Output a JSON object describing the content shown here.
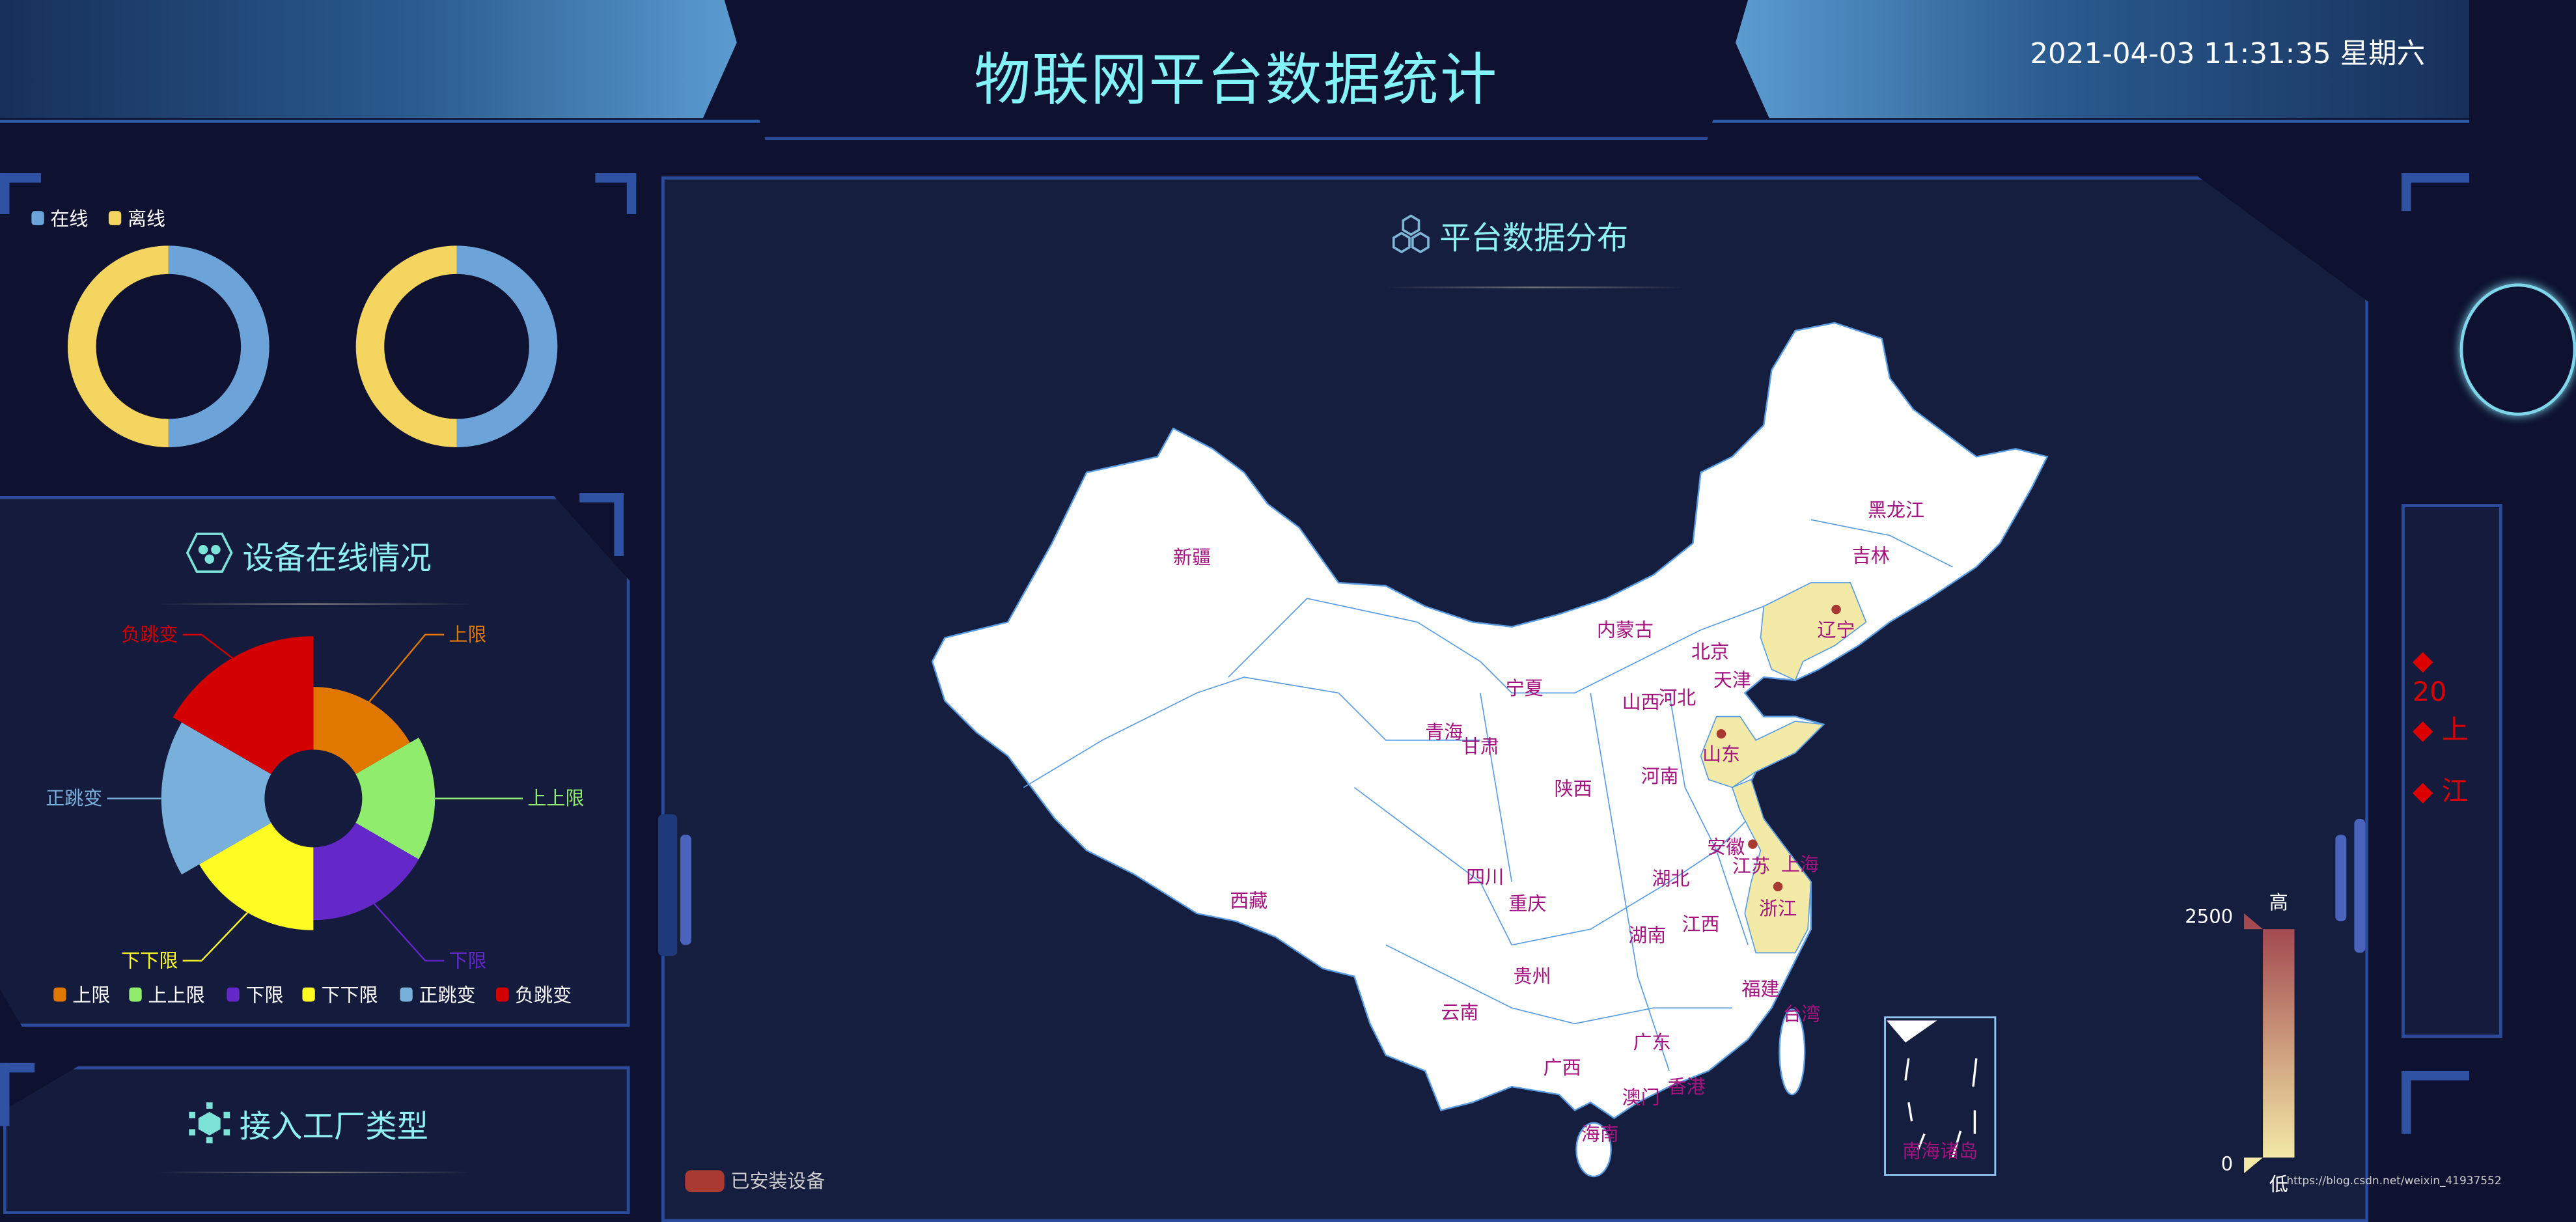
{
  "header": {
    "title": "物联网平台数据统计",
    "datetime": "2021-04-03 11:31:35 星期六"
  },
  "online_panel": {
    "legend": [
      {
        "label": "在线",
        "color": "#6ca3d9"
      },
      {
        "label": "离线",
        "color": "#f3d55f"
      }
    ],
    "donuts": [
      {
        "online": 50,
        "offline": 50
      },
      {
        "online": 50,
        "offline": 50
      }
    ]
  },
  "device_panel": {
    "title": "设备在线情况",
    "icon": "hexagon-cluster-icon",
    "chart_data": {
      "type": "pie",
      "rose": true,
      "categories": [
        "上限",
        "上上限",
        "下限",
        "下下限",
        "正跳变",
        "负跳变"
      ],
      "values": [
        11,
        12,
        12,
        13,
        15,
        16
      ],
      "colors": [
        "#e07800",
        "#8fec6c",
        "#6428c8",
        "#fefc22",
        "#78afdb",
        "#d20000"
      ],
      "legend_placement": "bottom"
    }
  },
  "factory_panel": {
    "title": "接入工厂类型",
    "icon": "cube-network-icon"
  },
  "map_panel": {
    "title": "平台数据分布",
    "icon": "hexagons-icon",
    "legend_label": "已安装设备",
    "legend_color": "#a83a32",
    "visual_map": {
      "max_label": "2500",
      "min_label": "0",
      "high_label": "高",
      "low_label": "低",
      "max": 2500,
      "min": 0,
      "colors": [
        "#f3e9a6",
        "#a34a50"
      ]
    },
    "highlighted": [
      "辽宁",
      "山东",
      "江苏",
      "浙江"
    ],
    "provinces": [
      "新疆",
      "西藏",
      "青海",
      "甘肃",
      "宁夏",
      "内蒙古",
      "黑龙江",
      "吉林",
      "辽宁",
      "北京",
      "天津",
      "河北",
      "山西",
      "陕西",
      "河南",
      "山东",
      "安徽",
      "江苏",
      "上海",
      "浙江",
      "湖北",
      "四川",
      "重庆",
      "湖南",
      "江西",
      "贵州",
      "云南",
      "福建",
      "台湾",
      "广西",
      "广东",
      "澳门",
      "香港",
      "海南"
    ],
    "inset_label": "南海诸岛"
  },
  "right_panel": {
    "lines": [
      "20",
      "上",
      "江"
    ]
  },
  "watermark": "https://blog.csdn.net/weixin_41937552"
}
